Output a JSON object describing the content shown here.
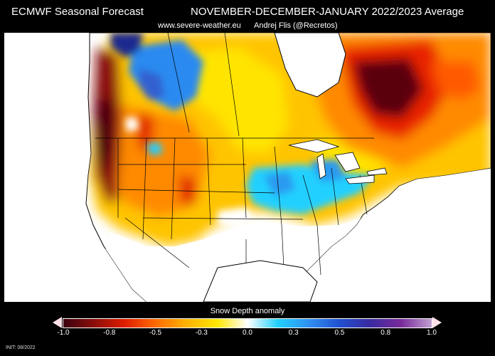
{
  "header": {
    "title_left": "ECMWF Seasonal Forecast",
    "title_right": "NOVEMBER-DECEMBER-JANUARY 2022/2023 Average",
    "site": "www.severe-weather.eu",
    "author": "Andrej Flis (@Recretos)"
  },
  "legend": {
    "title": "Snow Depth anomaly",
    "ticks": [
      "-1.0",
      "-0.8",
      "-0.5",
      "-0.3",
      "0.0",
      "0.3",
      "0.5",
      "0.8",
      "1.0"
    ],
    "colors": [
      "#3a0010",
      "#8a0e0a",
      "#e01e00",
      "#ff6a00",
      "#ffb000",
      "#ffe600",
      "#ffffff",
      "#20d0ff",
      "#3090f0",
      "#2050d0",
      "#3a2aa0",
      "#7a2a9a",
      "#c0a0d0"
    ]
  },
  "footer": {
    "init": "INIT: 08/2022"
  }
}
